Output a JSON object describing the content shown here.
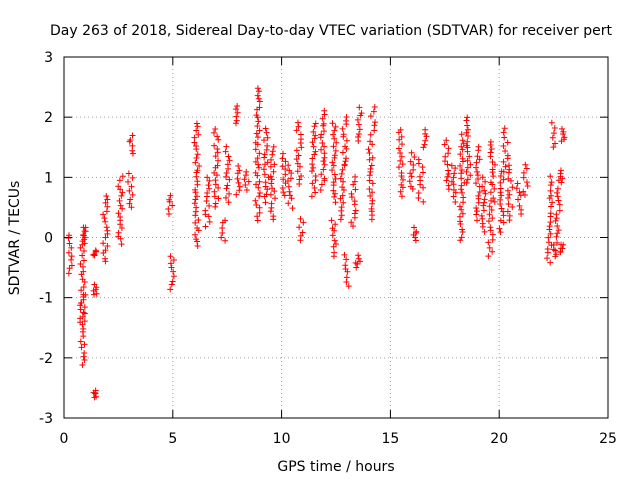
{
  "chart_data": {
    "type": "scatter",
    "title": "Day 263 of 2018, Sidereal Day-to-day VTEC variation (SDTVAR) for receiver pert",
    "xlabel": "GPS time / hours",
    "ylabel": "SDTVAR / TECUs",
    "xlim": [
      0,
      25
    ],
    "ylim": [
      -3,
      3
    ],
    "xticks": [
      0,
      5,
      10,
      15,
      20,
      25
    ],
    "yticks": [
      -3,
      -2,
      -1,
      0,
      1,
      2,
      3
    ],
    "xtick_labels": [
      "0",
      "5",
      "10",
      "15",
      "20",
      "25"
    ],
    "ytick_labels": [
      "-3",
      "-2",
      "-1",
      "0",
      "1",
      "2",
      "3"
    ],
    "grid": true,
    "marker": "plus",
    "color": "#ff0000",
    "clusters": [
      [
        0.3,
        -0.6,
        0.05
      ],
      [
        0.85,
        -2.1,
        0.15
      ],
      [
        0.9,
        -1.4,
        -0.95
      ],
      [
        0.95,
        -0.1,
        0.15
      ],
      [
        1.4,
        -2.65,
        -2.55
      ],
      [
        1.4,
        -0.95,
        -0.8
      ],
      [
        1.45,
        -0.3,
        -0.2
      ],
      [
        1.9,
        -0.4,
        0.7
      ],
      [
        2.6,
        -0.1,
        1.0
      ],
      [
        3.05,
        0.5,
        1.05
      ],
      [
        3.1,
        1.4,
        1.7
      ],
      [
        4.9,
        0.4,
        0.7
      ],
      [
        4.95,
        -0.85,
        -0.3
      ],
      [
        6.1,
        -0.15,
        1.9
      ],
      [
        6.6,
        0.2,
        1.0
      ],
      [
        7.0,
        0.5,
        1.8
      ],
      [
        7.3,
        -0.05,
        0.3
      ],
      [
        7.5,
        0.6,
        1.5
      ],
      [
        8.0,
        0.7,
        1.2
      ],
      [
        8.0,
        1.9,
        2.2
      ],
      [
        8.4,
        0.8,
        1.1
      ],
      [
        8.9,
        0.3,
        2.5
      ],
      [
        9.3,
        0.6,
        1.8
      ],
      [
        9.6,
        0.3,
        1.5
      ],
      [
        10.1,
        0.7,
        1.4
      ],
      [
        10.4,
        0.5,
        1.2
      ],
      [
        10.8,
        0.9,
        1.9
      ],
      [
        10.9,
        -0.05,
        0.3
      ],
      [
        11.5,
        0.7,
        1.9
      ],
      [
        11.9,
        0.8,
        2.1
      ],
      [
        12.4,
        0.6,
        1.9
      ],
      [
        12.8,
        0.3,
        1.2
      ],
      [
        12.4,
        -0.3,
        0.3
      ],
      [
        12.9,
        1.2,
        2.0
      ],
      [
        13.0,
        -0.8,
        -0.3
      ],
      [
        13.3,
        0.2,
        1.0
      ],
      [
        13.5,
        -0.5,
        -0.3
      ],
      [
        13.6,
        1.6,
        2.15
      ],
      [
        14.1,
        0.3,
        1.6
      ],
      [
        14.2,
        1.7,
        2.15
      ],
      [
        15.5,
        0.7,
        1.8
      ],
      [
        16.0,
        0.8,
        1.4
      ],
      [
        16.4,
        0.6,
        1.3
      ],
      [
        16.6,
        1.5,
        1.8
      ],
      [
        16.1,
        -0.05,
        0.15
      ],
      [
        17.6,
        0.8,
        1.6
      ],
      [
        17.9,
        0.6,
        1.2
      ],
      [
        18.3,
        -0.05,
        1.7
      ],
      [
        18.6,
        0.9,
        2.0
      ],
      [
        19.0,
        0.3,
        1.5
      ],
      [
        19.3,
        0.1,
        1.0
      ],
      [
        19.6,
        -0.3,
        0.6
      ],
      [
        19.7,
        0.6,
        1.6
      ],
      [
        20.1,
        0.1,
        1.1
      ],
      [
        20.3,
        1.1,
        1.8
      ],
      [
        20.5,
        0.3,
        1.2
      ],
      [
        20.9,
        0.4,
        0.9
      ],
      [
        21.2,
        0.7,
        1.2
      ],
      [
        22.3,
        -0.4,
        0.4
      ],
      [
        22.4,
        0.5,
        1.0
      ],
      [
        22.5,
        1.5,
        1.9
      ],
      [
        22.7,
        0.0,
        0.8
      ],
      [
        22.6,
        -0.3,
        -0.1
      ],
      [
        22.9,
        1.6,
        1.8
      ],
      [
        22.9,
        -0.25,
        -0.1
      ],
      [
        22.8,
        0.9,
        1.1
      ]
    ]
  }
}
